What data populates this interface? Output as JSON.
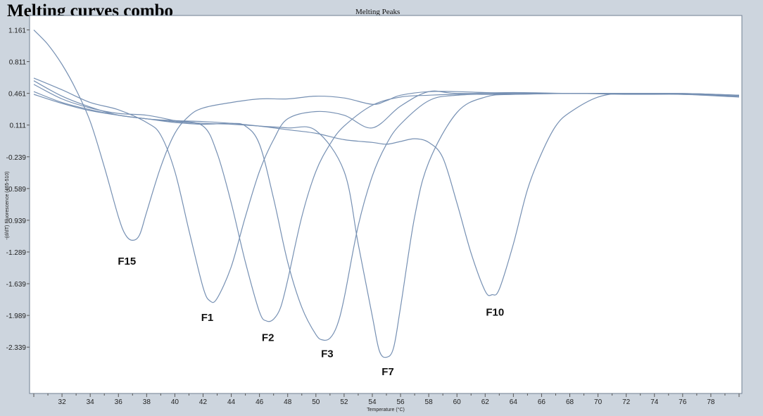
{
  "title": "Melting curves combo",
  "chart_data": {
    "type": "line",
    "title": "Melting Peaks",
    "xlabel": "Temperature (°C)",
    "ylabel": "-(d/dT) Fluorescence (465-510)",
    "xlim": [
      29.7,
      80.2
    ],
    "ylim": [
      -2.85,
      1.32
    ],
    "x_ticks": [
      32,
      34,
      36,
      38,
      40,
      42,
      44,
      46,
      48,
      50,
      52,
      54,
      56,
      58,
      60,
      62,
      64,
      66,
      68,
      70,
      72,
      74,
      76,
      78
    ],
    "y_ticks": [
      1.161,
      0.811,
      0.461,
      0.111,
      -0.239,
      -0.589,
      -0.939,
      -1.289,
      -1.639,
      -1.989,
      -2.339
    ],
    "grid": false,
    "line_color": "#7690b3",
    "series": [
      {
        "name": "F15",
        "x": [
          30,
          31,
          32,
          33,
          34,
          35,
          36,
          36.5,
          37,
          37.5,
          38,
          39,
          40,
          41,
          42,
          44,
          46,
          48,
          50,
          52,
          54,
          55,
          56,
          58,
          60,
          64,
          68,
          72,
          76,
          80
        ],
        "y": [
          1.16,
          1.0,
          0.78,
          0.5,
          0.15,
          -0.35,
          -0.9,
          -1.1,
          -1.16,
          -1.1,
          -0.85,
          -0.35,
          0.02,
          0.21,
          0.3,
          0.36,
          0.4,
          0.4,
          0.43,
          0.41,
          0.34,
          0.38,
          0.44,
          0.48,
          0.48,
          0.46,
          0.46,
          0.46,
          0.46,
          0.44
        ]
      },
      {
        "name": "F1",
        "x": [
          30,
          32,
          34,
          36,
          38,
          39,
          40,
          41,
          42,
          42.5,
          43,
          44,
          45,
          46,
          47,
          48,
          50,
          52,
          54,
          56,
          58,
          60,
          64,
          68,
          72,
          76,
          80
        ],
        "y": [
          0.63,
          0.5,
          0.36,
          0.28,
          0.14,
          0.0,
          -0.4,
          -1.05,
          -1.68,
          -1.83,
          -1.8,
          -1.45,
          -0.9,
          -0.4,
          -0.05,
          0.18,
          0.26,
          0.22,
          0.08,
          0.32,
          0.48,
          0.46,
          0.47,
          0.46,
          0.46,
          0.46,
          0.44
        ]
      },
      {
        "name": "F2",
        "x": [
          30,
          32,
          34,
          36,
          38,
          40,
          42,
          43,
          44,
          45,
          46,
          46.5,
          47,
          47.5,
          48,
          49,
          50,
          51,
          52,
          54,
          56,
          58,
          60,
          64,
          68,
          72,
          76,
          80
        ],
        "y": [
          0.56,
          0.4,
          0.3,
          0.24,
          0.22,
          0.16,
          0.1,
          -0.2,
          -0.75,
          -1.4,
          -1.95,
          -2.05,
          -2.03,
          -1.9,
          -1.6,
          -0.9,
          -0.4,
          -0.1,
          0.1,
          0.33,
          0.42,
          0.44,
          0.45,
          0.45,
          0.46,
          0.45,
          0.45,
          0.43
        ]
      },
      {
        "name": "F3",
        "x": [
          30,
          32,
          34,
          36,
          38,
          40,
          42,
          44,
          45,
          46,
          47,
          48,
          49,
          50,
          50.5,
          51,
          51.5,
          52,
          53,
          54,
          55,
          56,
          58,
          60,
          64,
          68,
          72,
          76,
          80
        ],
        "y": [
          0.6,
          0.43,
          0.31,
          0.22,
          0.18,
          0.14,
          0.12,
          0.13,
          0.1,
          -0.1,
          -0.7,
          -1.4,
          -1.9,
          -2.2,
          -2.26,
          -2.24,
          -2.1,
          -1.8,
          -1.0,
          -0.45,
          -0.1,
          0.12,
          0.38,
          0.44,
          0.46,
          0.46,
          0.46,
          0.45,
          0.44
        ]
      },
      {
        "name": "F7",
        "x": [
          30,
          32,
          34,
          36,
          38,
          40,
          42,
          44,
          46,
          48,
          50,
          52,
          53,
          54,
          54.5,
          55,
          55.5,
          56,
          57,
          58,
          60,
          62,
          64,
          68,
          72,
          76,
          80
        ],
        "y": [
          0.48,
          0.36,
          0.28,
          0.22,
          0.18,
          0.15,
          0.13,
          0.12,
          0.1,
          0.08,
          0.05,
          -0.4,
          -1.2,
          -2.0,
          -2.38,
          -2.45,
          -2.35,
          -1.9,
          -0.9,
          -0.3,
          0.25,
          0.42,
          0.45,
          0.46,
          0.46,
          0.45,
          0.44
        ]
      },
      {
        "name": "F10",
        "x": [
          30,
          32,
          34,
          36,
          38,
          40,
          42,
          44,
          46,
          48,
          50,
          52,
          54,
          55,
          56,
          57,
          58,
          59,
          60,
          61,
          62,
          62.5,
          63,
          64,
          65,
          66,
          67,
          68,
          70,
          72,
          76,
          80
        ],
        "y": [
          0.45,
          0.35,
          0.27,
          0.22,
          0.18,
          0.16,
          0.15,
          0.13,
          0.1,
          0.06,
          0.02,
          -0.05,
          -0.08,
          -0.1,
          -0.07,
          -0.04,
          -0.08,
          -0.25,
          -0.75,
          -1.3,
          -1.72,
          -1.76,
          -1.7,
          -1.2,
          -0.6,
          -0.2,
          0.1,
          0.25,
          0.42,
          0.46,
          0.45,
          0.42
        ]
      }
    ],
    "annotations": [
      {
        "text": "F15",
        "x": 36.6,
        "y": -1.43
      },
      {
        "text": "F1",
        "x": 42.3,
        "y": -2.05
      },
      {
        "text": "F2",
        "x": 46.6,
        "y": -2.27
      },
      {
        "text": "F3",
        "x": 50.8,
        "y": -2.45
      },
      {
        "text": "F7",
        "x": 55.1,
        "y": -2.65
      },
      {
        "text": "F10",
        "x": 62.7,
        "y": -1.99
      }
    ]
  }
}
